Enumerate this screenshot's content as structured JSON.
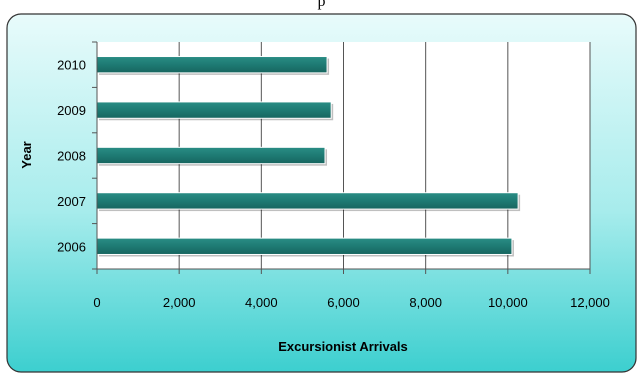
{
  "chart_data": {
    "type": "bar",
    "orientation": "horizontal",
    "title": "p",
    "xlabel": "Excursionist Arrivals",
    "ylabel": "Year",
    "categories": [
      "2010",
      "2009",
      "2008",
      "2007",
      "2006"
    ],
    "values": [
      5600,
      5700,
      5550,
      10250,
      10100
    ],
    "xlim": [
      0,
      12000
    ],
    "xticks": [
      0,
      2000,
      4000,
      6000,
      8000,
      10000,
      12000
    ],
    "xtick_labels": [
      "0",
      "2,000",
      "4,000",
      "6,000",
      "8,000",
      "10,000",
      "12,000"
    ],
    "grid": "vertical",
    "legend": "none",
    "colors": {
      "bar": "#1e7a73",
      "background_top": "#e8fbfb",
      "background_bottom": "#3ccfcf",
      "border": "#333333",
      "plot_area": "#ffffff",
      "grid": "#555555"
    }
  }
}
